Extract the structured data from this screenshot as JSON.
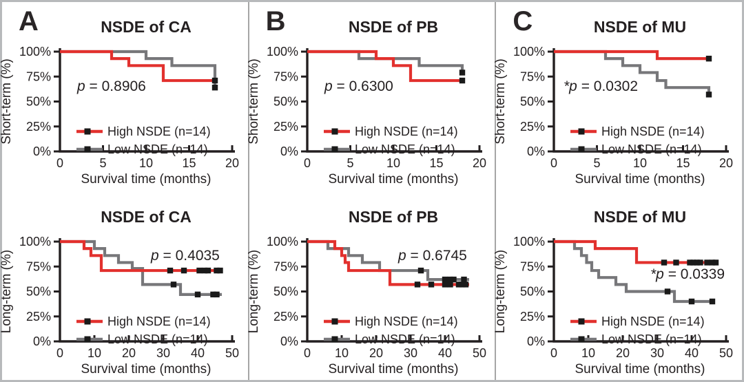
{
  "figure": {
    "panels": [
      {
        "label": "A"
      },
      {
        "label": "B"
      },
      {
        "label": "C"
      }
    ],
    "colors": {
      "high_nsde": "#e2312e",
      "low_nsde": "#77777a",
      "axis": "#231f20",
      "censor": "#1a1a1a",
      "frame_border": "#b7b9bb"
    }
  },
  "chart_data": [
    {
      "type": "line",
      "subtype": "kaplan-meier-step",
      "panel": "A",
      "row": "top",
      "title": "NSDE of CA",
      "ylabel": "Short-term (%)",
      "xlabel": "Survival time (months)",
      "p_italic": "p",
      "p_text": " = 0.8906",
      "p_pos": [
        113,
        127
      ],
      "xlim": [
        0,
        20
      ],
      "xticks": [
        0,
        5,
        10,
        15,
        20
      ],
      "ylim": [
        0,
        100
      ],
      "yticks": [
        0,
        25,
        50,
        75,
        100
      ],
      "ytick_suffix": "%",
      "grid": false,
      "legend_pos": "lower-left",
      "series": [
        {
          "name": "High NSDE (n=14)",
          "color": "#e2312e",
          "steps": [
            [
              0,
              100
            ],
            [
              6,
              93
            ],
            [
              8,
              86
            ],
            [
              12,
              71
            ]
          ],
          "end": 18,
          "censors": [
            [
              18,
              71
            ]
          ]
        },
        {
          "name": "Low NSDE (n=14)",
          "color": "#77777a",
          "steps": [
            [
              0,
              100
            ],
            [
              10,
              93
            ],
            [
              13,
              86
            ],
            [
              18,
              64
            ]
          ],
          "end": 18,
          "censors": [
            [
              18,
              64
            ]
          ]
        }
      ]
    },
    {
      "type": "line",
      "subtype": "kaplan-meier-step",
      "panel": "A",
      "row": "bottom",
      "title": "NSDE of CA",
      "ylabel": "Long-term (%)",
      "xlabel": "Survival time (months)",
      "p_italic": "p",
      "p_text": " = 0.4035",
      "p_pos": [
        220,
        97
      ],
      "xlim": [
        0,
        50
      ],
      "xticks": [
        0,
        10,
        20,
        30,
        40,
        50
      ],
      "ylim": [
        0,
        100
      ],
      "yticks": [
        0,
        25,
        50,
        75,
        100
      ],
      "ytick_suffix": "%",
      "grid": false,
      "legend_pos": "lower-left",
      "series": [
        {
          "name": "High NSDE (n=14)",
          "color": "#e2312e",
          "steps": [
            [
              0,
              100
            ],
            [
              7,
              93
            ],
            [
              9,
              86
            ],
            [
              12,
              71
            ]
          ],
          "end": 47,
          "censors": [
            [
              32,
              71
            ],
            [
              36,
              71
            ],
            [
              40.5,
              71
            ],
            [
              42,
              71
            ],
            [
              43,
              71
            ],
            [
              45.5,
              71
            ],
            [
              46.5,
              71
            ]
          ]
        },
        {
          "name": "Low NSDE (n=14)",
          "color": "#77777a",
          "steps": [
            [
              0,
              100
            ],
            [
              10,
              93
            ],
            [
              13,
              86
            ],
            [
              17,
              79
            ],
            [
              21,
              73
            ],
            [
              24,
              57
            ],
            [
              35,
              47
            ]
          ],
          "end": 47,
          "censors": [
            [
              33,
              57
            ],
            [
              40,
              47
            ],
            [
              44.5,
              47
            ],
            [
              45.5,
              47
            ]
          ]
        }
      ]
    },
    {
      "type": "line",
      "subtype": "kaplan-meier-step",
      "panel": "B",
      "row": "top",
      "title": "NSDE of PB",
      "ylabel": "Short-term (%)",
      "xlabel": "Survival time (months)",
      "p_italic": "p",
      "p_text": " = 0.6300",
      "p_pos": [
        113,
        127
      ],
      "xlim": [
        0,
        20
      ],
      "xticks": [
        0,
        5,
        10,
        15,
        20
      ],
      "ylim": [
        0,
        100
      ],
      "yticks": [
        0,
        25,
        50,
        75,
        100
      ],
      "ytick_suffix": "%",
      "grid": false,
      "legend_pos": "lower-left",
      "series": [
        {
          "name": "High NSDE (n=14)",
          "color": "#e2312e",
          "steps": [
            [
              0,
              100
            ],
            [
              8,
              93
            ],
            [
              10,
              86
            ],
            [
              12,
              71
            ]
          ],
          "end": 18,
          "censors": [
            [
              18,
              71
            ]
          ]
        },
        {
          "name": "Low NSDE (n=14)",
          "color": "#77777a",
          "steps": [
            [
              0,
              100
            ],
            [
              6,
              93
            ],
            [
              13,
              86
            ],
            [
              18,
              79
            ]
          ],
          "end": 18,
          "censors": [
            [
              18,
              79
            ]
          ]
        }
      ]
    },
    {
      "type": "line",
      "subtype": "kaplan-meier-step",
      "panel": "B",
      "row": "bottom",
      "title": "NSDE of PB",
      "ylabel": "Long-term (%)",
      "xlabel": "Survival time (months)",
      "p_italic": "p",
      "p_text": " = 0.6745",
      "p_pos": [
        220,
        97
      ],
      "xlim": [
        0,
        50
      ],
      "xticks": [
        0,
        10,
        20,
        30,
        40,
        50
      ],
      "ylim": [
        0,
        100
      ],
      "yticks": [
        0,
        25,
        50,
        75,
        100
      ],
      "ytick_suffix": "%",
      "grid": false,
      "legend_pos": "lower-left",
      "series": [
        {
          "name": "High NSDE (n=14)",
          "color": "#e2312e",
          "steps": [
            [
              0,
              100
            ],
            [
              8,
              93
            ],
            [
              10,
              86
            ],
            [
              11,
              79
            ],
            [
              12,
              71
            ],
            [
              24,
              57
            ]
          ],
          "end": 47,
          "censors": [
            [
              32,
              57
            ],
            [
              36,
              57
            ],
            [
              40,
              57
            ],
            [
              41.5,
              57
            ],
            [
              44,
              57
            ],
            [
              45,
              57
            ],
            [
              46,
              57
            ]
          ]
        },
        {
          "name": "Low NSDE (n=14)",
          "color": "#77777a",
          "steps": [
            [
              0,
              100
            ],
            [
              6,
              93
            ],
            [
              12,
              86
            ],
            [
              16,
              79
            ],
            [
              21,
              71
            ],
            [
              35,
              62
            ]
          ],
          "end": 47,
          "censors": [
            [
              33,
              71
            ],
            [
              40,
              62
            ],
            [
              41.5,
              62
            ],
            [
              42.5,
              62
            ],
            [
              45.5,
              62
            ]
          ]
        }
      ]
    },
    {
      "type": "line",
      "subtype": "kaplan-meier-step",
      "panel": "C",
      "row": "top",
      "title": "NSDE of MU",
      "ylabel": "Short-term (%)",
      "xlabel": "Survival time (months)",
      "p_italic": "*p",
      "p_text": " = 0.0302",
      "p_pos": [
        102,
        127
      ],
      "xlim": [
        0,
        20
      ],
      "xticks": [
        0,
        5,
        10,
        15,
        20
      ],
      "ylim": [
        0,
        100
      ],
      "yticks": [
        0,
        25,
        50,
        75,
        100
      ],
      "ytick_suffix": "%",
      "grid": false,
      "legend_pos": "lower-left",
      "series": [
        {
          "name": "High NSDE (n=14)",
          "color": "#e2312e",
          "steps": [
            [
              0,
              100
            ],
            [
              12,
              93
            ]
          ],
          "end": 18,
          "censors": [
            [
              18,
              93
            ]
          ]
        },
        {
          "name": "Low NSDE (n=14)",
          "color": "#77777a",
          "steps": [
            [
              0,
              100
            ],
            [
              6,
              93
            ],
            [
              8,
              86
            ],
            [
              10,
              79
            ],
            [
              12,
              71
            ],
            [
              13,
              64
            ],
            [
              18,
              57
            ]
          ],
          "end": 18,
          "censors": [
            [
              18,
              57
            ]
          ]
        }
      ]
    },
    {
      "type": "line",
      "subtype": "kaplan-meier-step",
      "panel": "C",
      "row": "bottom",
      "title": "NSDE of MU",
      "ylabel": "Long-term (%)",
      "xlabel": "Survival time (months)",
      "p_italic": "*p",
      "p_text": " = 0.0339",
      "p_pos": [
        228,
        124
      ],
      "xlim": [
        0,
        50
      ],
      "xticks": [
        0,
        10,
        20,
        30,
        40,
        50
      ],
      "ylim": [
        0,
        100
      ],
      "yticks": [
        0,
        25,
        50,
        75,
        100
      ],
      "ytick_suffix": "%",
      "grid": false,
      "legend_pos": "lower-left",
      "series": [
        {
          "name": "High NSDE (n=14)",
          "color": "#e2312e",
          "steps": [
            [
              0,
              100
            ],
            [
              12,
              93
            ],
            [
              24,
              79
            ]
          ],
          "end": 47,
          "censors": [
            [
              32,
              79
            ],
            [
              35.5,
              79
            ],
            [
              39.5,
              79
            ],
            [
              40.5,
              79
            ],
            [
              41.5,
              79
            ],
            [
              42.5,
              79
            ],
            [
              44.5,
              79
            ],
            [
              46,
              79
            ],
            [
              47,
              79
            ]
          ]
        },
        {
          "name": "Low NSDE (n=14)",
          "color": "#77777a",
          "steps": [
            [
              0,
              100
            ],
            [
              6,
              93
            ],
            [
              8,
              86
            ],
            [
              9.5,
              79
            ],
            [
              11,
              71
            ],
            [
              13,
              64
            ],
            [
              18,
              57
            ],
            [
              21,
              50
            ],
            [
              35,
              40
            ]
          ],
          "end": 46,
          "censors": [
            [
              33,
              50
            ],
            [
              40,
              40
            ],
            [
              46,
              40
            ]
          ]
        }
      ]
    }
  ]
}
